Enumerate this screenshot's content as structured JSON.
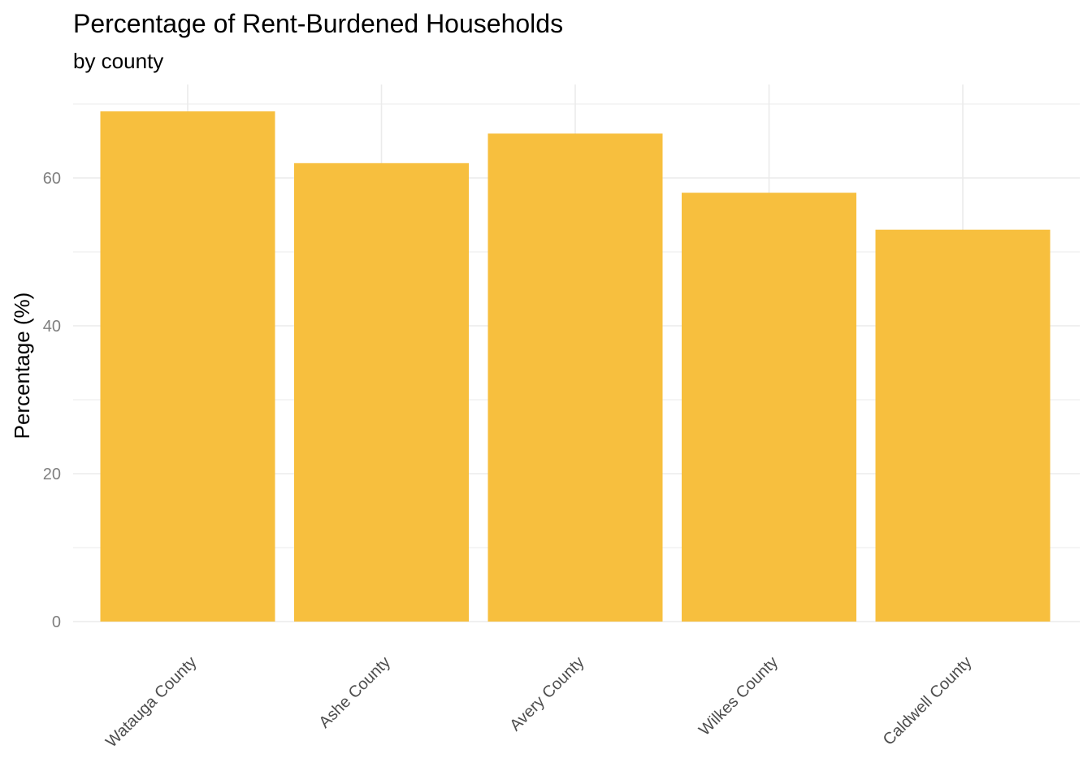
{
  "chart_data": {
    "type": "bar",
    "title": "Percentage of Rent-Burdened Households",
    "subtitle": "by county",
    "xlabel": "",
    "ylabel": "Percentage (%)",
    "categories": [
      "Watauga County",
      "Ashe County",
      "Avery County",
      "Wilkes County",
      "Caldwell County"
    ],
    "values": [
      69,
      62,
      66,
      58,
      53
    ],
    "ylim": [
      0,
      72.5
    ],
    "yticks": [
      0,
      20,
      40,
      60
    ],
    "grid": true,
    "legend": "none",
    "colors": {
      "bar": "#F7BF3E",
      "grid": "#EBEBEB"
    }
  }
}
